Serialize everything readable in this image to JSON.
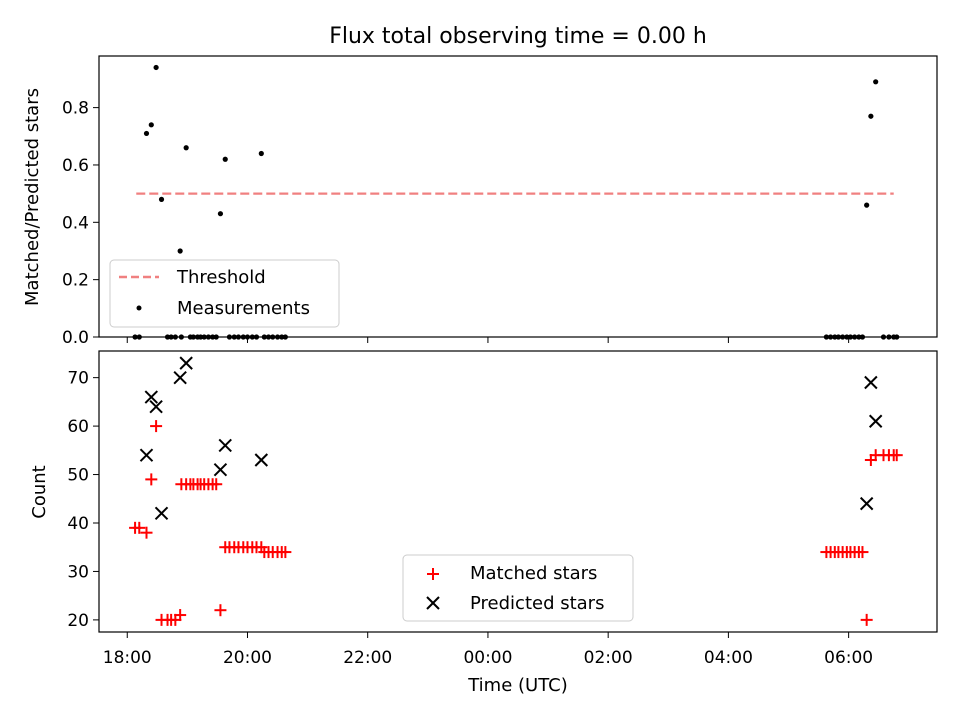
{
  "chart_data": [
    {
      "type": "scatter",
      "title": "Flux total observing time = 0.00 h",
      "xlabel": "",
      "ylabel": "Matched/Predicted stars",
      "ylim": [
        0,
        0.98
      ],
      "yticks": [
        0.0,
        0.2,
        0.4,
        0.6,
        0.8
      ],
      "ytick_labels": [
        "0.0",
        "0.2",
        "0.4",
        "0.6",
        "0.8"
      ],
      "xlim_hours": [
        17.53,
        31.47
      ],
      "grid": false,
      "legend_placement": "lower-left",
      "threshold": {
        "name": "Threshold",
        "value": 0.5,
        "x_range": [
          18.15,
          30.75
        ],
        "color": "#f08080"
      },
      "series": [
        {
          "name": "Measurements",
          "color": "#000000",
          "x": [
            18.13,
            18.2,
            18.32,
            18.4,
            18.48,
            18.57,
            18.67,
            18.73,
            18.8,
            18.88,
            18.9,
            18.98,
            19.05,
            19.1,
            19.17,
            19.22,
            19.28,
            19.35,
            19.42,
            19.48,
            19.55,
            19.63,
            19.7,
            19.78,
            19.85,
            19.93,
            20.0,
            20.08,
            20.15,
            20.23,
            20.28,
            20.35,
            20.42,
            20.5,
            20.57,
            20.63,
            29.63,
            29.7,
            29.77,
            29.83,
            29.9,
            29.97,
            30.03,
            30.1,
            30.17,
            30.23,
            30.3,
            30.37,
            30.45,
            30.58,
            30.67,
            30.75,
            30.8
          ],
          "y": [
            0,
            0,
            0.71,
            0.74,
            0.94,
            0.48,
            0,
            0,
            0,
            0.3,
            0,
            0.66,
            0,
            0,
            0,
            0,
            0,
            0,
            0,
            0,
            0.43,
            0.62,
            0,
            0,
            0,
            0,
            0,
            0,
            0,
            0.64,
            0,
            0,
            0,
            0,
            0,
            0,
            0,
            0,
            0,
            0,
            0,
            0,
            0,
            0,
            0,
            0,
            0.46,
            0.77,
            0.89,
            0,
            0,
            0,
            0
          ]
        }
      ]
    },
    {
      "type": "scatter",
      "title": "",
      "xlabel": "Time (UTC)",
      "ylabel": "Count",
      "ylim": [
        17.5,
        75.5
      ],
      "yticks": [
        20,
        30,
        40,
        50,
        60,
        70
      ],
      "ytick_labels": [
        "20",
        "30",
        "40",
        "50",
        "60",
        "70"
      ],
      "xlim_hours": [
        17.53,
        31.47
      ],
      "xticks_hours": [
        18,
        20,
        22,
        24,
        26,
        28,
        30
      ],
      "xtick_labels": [
        "18:00",
        "20:00",
        "22:00",
        "00:00",
        "02:00",
        "04:00",
        "06:00"
      ],
      "grid": false,
      "legend_placement": "bottom-center",
      "series": [
        {
          "name": "Matched stars",
          "marker": "plus",
          "color": "#ff0000",
          "x": [
            18.13,
            18.2,
            18.32,
            18.4,
            18.48,
            18.57,
            18.67,
            18.73,
            18.8,
            18.88,
            18.9,
            18.98,
            19.05,
            19.1,
            19.17,
            19.22,
            19.28,
            19.35,
            19.42,
            19.48,
            19.55,
            19.63,
            19.7,
            19.78,
            19.85,
            19.93,
            20.0,
            20.08,
            20.15,
            20.23,
            20.28,
            20.35,
            20.42,
            20.5,
            20.57,
            20.63,
            29.63,
            29.7,
            29.77,
            29.83,
            29.9,
            29.97,
            30.03,
            30.1,
            30.17,
            30.23,
            30.3,
            30.37,
            30.45,
            30.58,
            30.67,
            30.75,
            30.8
          ],
          "y": [
            39,
            39,
            38,
            49,
            60,
            20,
            20,
            20,
            20,
            21,
            48,
            48,
            48,
            48,
            48,
            48,
            48,
            48,
            48,
            48,
            22,
            35,
            35,
            35,
            35,
            35,
            35,
            35,
            35,
            35,
            34,
            34,
            34,
            34,
            34,
            34,
            34,
            34,
            34,
            34,
            34,
            34,
            34,
            34,
            34,
            34,
            20,
            53,
            54,
            54,
            54,
            54,
            54
          ]
        },
        {
          "name": "Predicted stars",
          "marker": "x",
          "color": "#000000",
          "x": [
            18.32,
            18.4,
            18.48,
            18.57,
            18.88,
            18.98,
            19.55,
            19.63,
            20.23,
            30.3,
            30.37,
            30.45
          ],
          "y": [
            54,
            66,
            64,
            42,
            70,
            73,
            51,
            56,
            53,
            44,
            69,
            61
          ]
        }
      ]
    }
  ]
}
